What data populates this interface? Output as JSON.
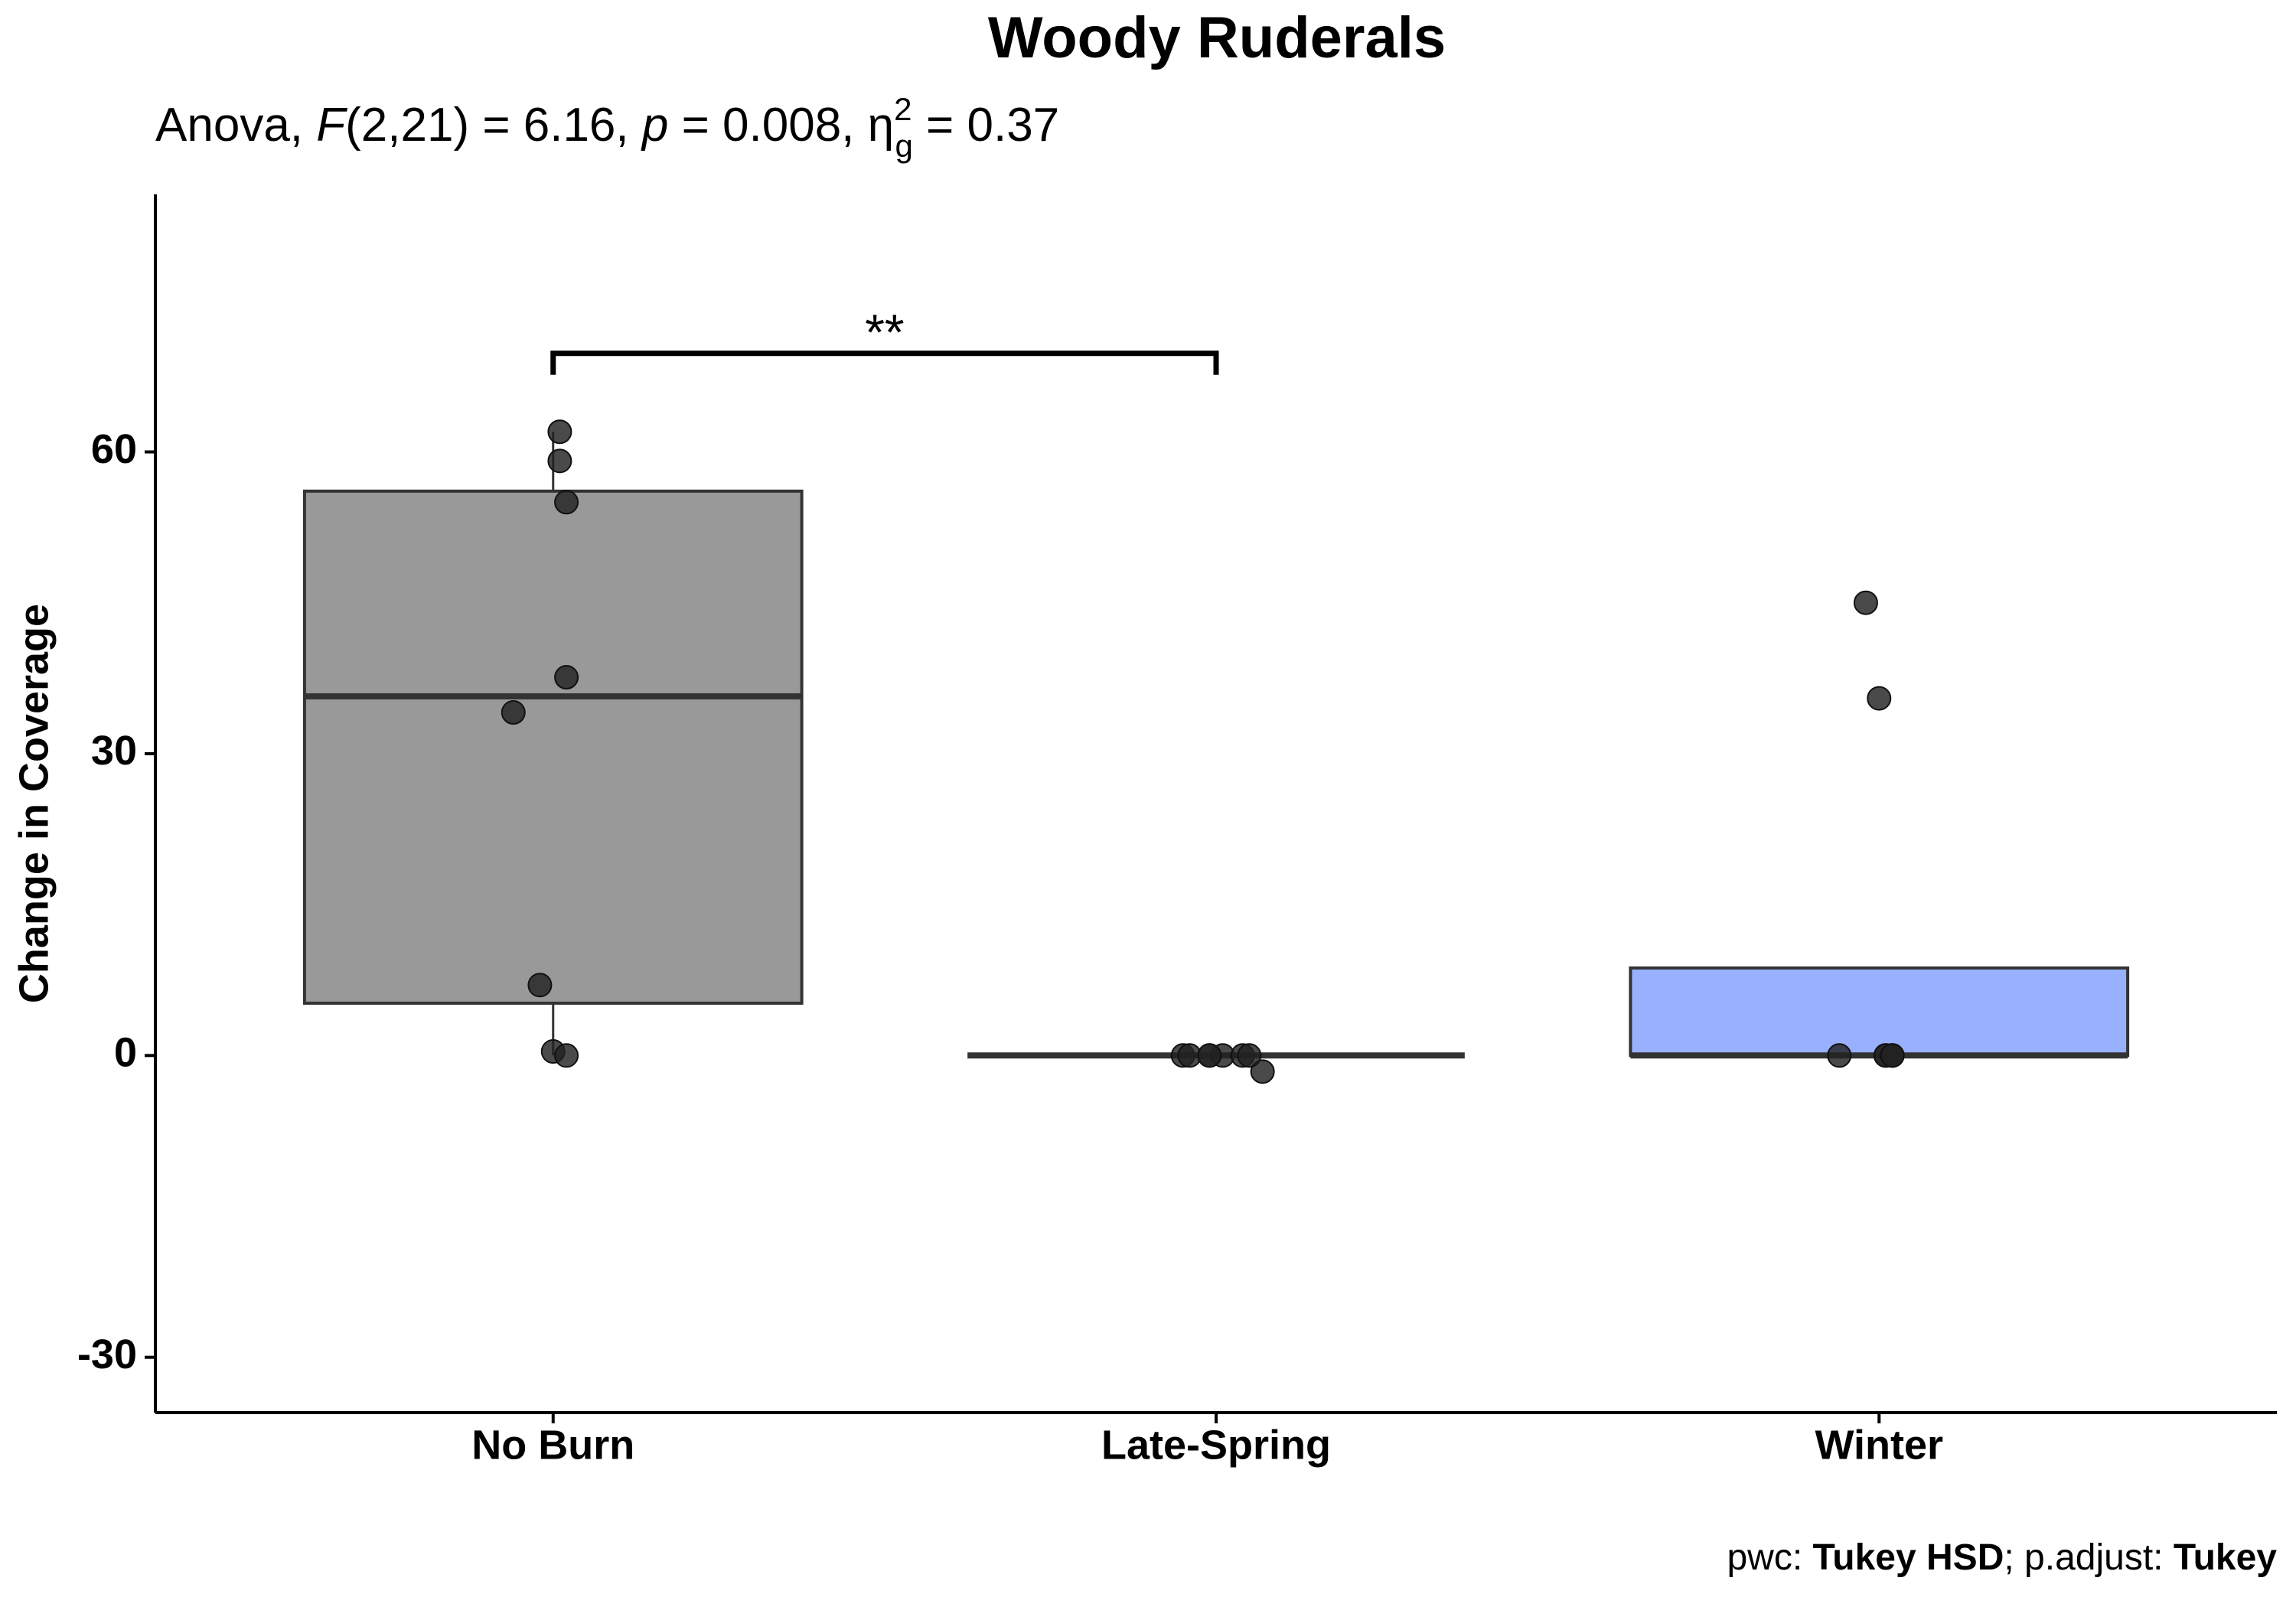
{
  "chart_data": {
    "type": "box",
    "title": "Woody Ruderals",
    "subtitle": [
      "Anova, ",
      "F",
      "(2,21) = 6.16, ",
      "p",
      " = 0.008, η",
      "2",
      "g",
      " = 0.37"
    ],
    "y_label": "Change in Coverage",
    "caption": [
      "pwc: ",
      "Tukey HSD",
      "; p.adjust: ",
      "Tukey"
    ],
    "categories": [
      "No Burn",
      "Late-Spring",
      "Winter"
    ],
    "series": [
      {
        "color": "#999999",
        "whisker_low": 0,
        "q1": 5.2,
        "median": 35.7,
        "q3": 56.1,
        "whisker_high": 62,
        "points": [
          62,
          59.1,
          55,
          37.6,
          34.1,
          7,
          0.4,
          0
        ]
      },
      {
        "color": "#f8a070",
        "whisker_low": 0,
        "q1": 0,
        "median": 0,
        "q3": 0,
        "whisker_high": 0,
        "points": [
          0,
          -1.6,
          0,
          0,
          0,
          0,
          0,
          0
        ]
      },
      {
        "color": "#99b0ff",
        "whisker_low": 0,
        "q1": 0,
        "median": 0,
        "q3": 8.7,
        "whisker_high": 8.7,
        "points": [
          45,
          35.5,
          0,
          0,
          0,
          0,
          0,
          0
        ]
      }
    ],
    "significance": [
      {
        "from": 0,
        "to": 1,
        "y": 69.8,
        "label": "**"
      }
    ],
    "ylim": [
      -35.5,
      85.6
    ],
    "yticks": [
      -30,
      0,
      30,
      60
    ]
  }
}
